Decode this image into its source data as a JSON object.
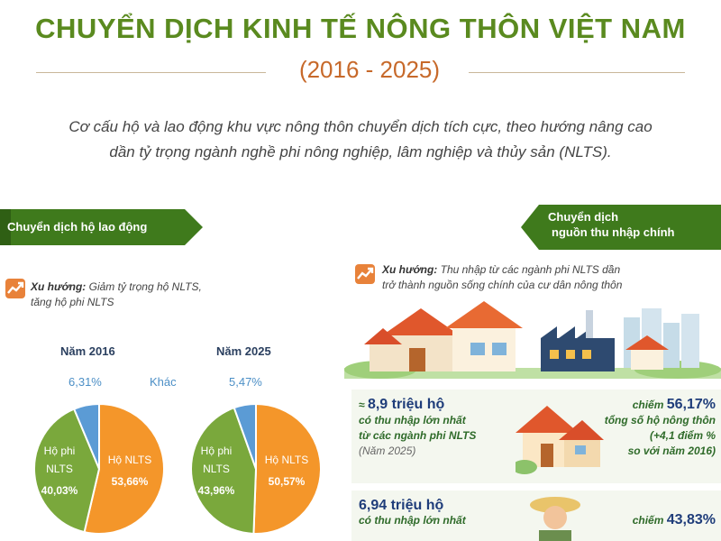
{
  "header": {
    "title": "CHUYỂN DỊCH KINH TẾ NÔNG THÔN VIỆT NAM",
    "subtitle": "(2016 - 2025)",
    "intro_line1": "Cơ cấu hộ và lao động khu vực nông thôn chuyển dịch tích cực, theo hướng nâng cao",
    "intro_line2": "dần tỷ trọng ngành nghề phi nông nghiệp, lâm nghiệp và thủy sản (NLTS)."
  },
  "left_section": {
    "ribbon": "Chuyển dịch hộ lao động",
    "trend_label": "Xu hướng:",
    "trend_text_line1": "Giảm tỷ trọng hộ NLTS,",
    "trend_text_line2": "tăng hộ phi NLTS"
  },
  "right_section": {
    "ribbon_line1": "Chuyển dịch",
    "ribbon_line2": "nguồn thu nhập chính",
    "trend_label": "Xu hướng:",
    "trend_text_line1": "Thu nhập từ các ngành phi NLTS dần",
    "trend_text_line2": "trở thành nguồn sống chính của cư dân nông thôn",
    "stat1": {
      "approx": "≈",
      "value": "8,9 triệu hộ",
      "line2": "có thu nhập lớn nhất",
      "line3": "từ các ngành phi NLTS",
      "note": "(Năm 2025)",
      "share_prefix": "chiếm",
      "share": "56,17%",
      "share_line2": "tổng số hộ nông thôn",
      "share_line3": "(+4,1 điểm %",
      "share_line4": "so với năm 2016)"
    },
    "stat2": {
      "value": "6,94 triệu hộ",
      "line2": "có thu nhập lớn nhất",
      "share_prefix": "chiếm",
      "share": "43,83%"
    }
  },
  "colors": {
    "nlts": "#f4962a",
    "phi_nlts": "#7aa83c",
    "other": "#5b9bd5",
    "title_green": "#5a8a1f",
    "subtitle_orange": "#c7692a"
  },
  "chart_data": [
    {
      "type": "pie",
      "title": "Năm 2016",
      "slices": [
        {
          "label": "Hộ NLTS",
          "value": 53.66,
          "display": "53,66%"
        },
        {
          "label": "Hộ phi NLTS",
          "value": 40.03,
          "display": "40,03%"
        },
        {
          "label": "Khác",
          "value": 6.31,
          "display": "6,31%"
        }
      ]
    },
    {
      "type": "pie",
      "title": "Năm 2025",
      "slices": [
        {
          "label": "Hộ NLTS",
          "value": 50.57,
          "display": "50,57%"
        },
        {
          "label": "Hộ phi NLTS",
          "value": 43.96,
          "display": "43,96%"
        },
        {
          "label": "Khác",
          "value": 5.47,
          "display": "5,47%"
        }
      ]
    }
  ]
}
